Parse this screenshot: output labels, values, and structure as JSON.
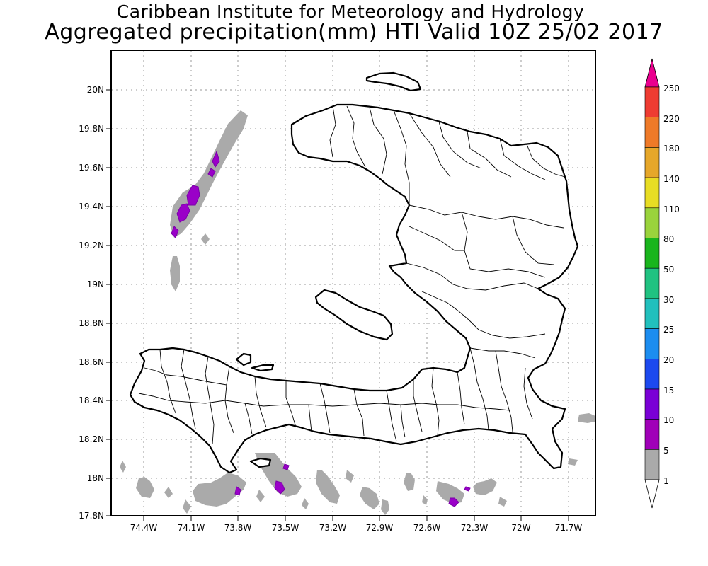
{
  "header": {
    "institute": "Caribbean Institute for Meteorology and Hydrology",
    "product": "Aggregated precipitation(mm) HTI Valid 10Z 25/02 2017"
  },
  "axes": {
    "lat_labels": [
      "20N",
      "19.8N",
      "19.6N",
      "19.4N",
      "19.2N",
      "19N",
      "18.8N",
      "18.6N",
      "18.4N",
      "18.2N",
      "18N",
      "17.8N"
    ],
    "lon_labels": [
      "74.4W",
      "74.1W",
      "73.8W",
      "73.5W",
      "73.2W",
      "72.9W",
      "72.6W",
      "72.3W",
      "72W",
      "71.7W"
    ],
    "lat_range": [
      17.8,
      20.22
    ],
    "lon_range": [
      -74.58,
      -71.58
    ],
    "grid": true
  },
  "legend": {
    "levels": [
      "250",
      "220",
      "180",
      "140",
      "110",
      "80",
      "50",
      "30",
      "25",
      "20",
      "15",
      "10",
      "5",
      "1"
    ],
    "colors": [
      "#ea008f",
      "#ef3c32",
      "#ef7a28",
      "#e6a72a",
      "#e8dd24",
      "#9ad33c",
      "#19b51d",
      "#20c281",
      "#21c0bd",
      "#1c8df0",
      "#1c49ef",
      "#7a00d6",
      "#a000b8",
      "#aaaaaa",
      "#ffffff"
    ],
    "top_color": "#ea008f",
    "bottom_color": "#ffffff"
  },
  "rain_areas": [
    {
      "class": "1-5",
      "color": "#aaaaaa"
    },
    {
      "class": "5-10",
      "color": "#9a00c8"
    }
  ]
}
